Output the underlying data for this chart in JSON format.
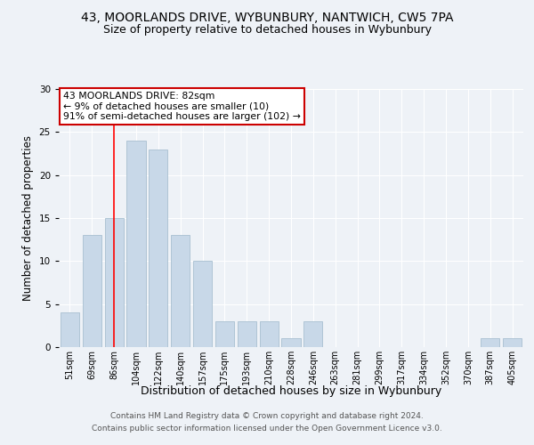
{
  "title": "43, MOORLANDS DRIVE, WYBUNBURY, NANTWICH, CW5 7PA",
  "subtitle": "Size of property relative to detached houses in Wybunbury",
  "xlabel": "Distribution of detached houses by size in Wybunbury",
  "ylabel": "Number of detached properties",
  "categories": [
    "51sqm",
    "69sqm",
    "86sqm",
    "104sqm",
    "122sqm",
    "140sqm",
    "157sqm",
    "175sqm",
    "193sqm",
    "210sqm",
    "228sqm",
    "246sqm",
    "263sqm",
    "281sqm",
    "299sqm",
    "317sqm",
    "334sqm",
    "352sqm",
    "370sqm",
    "387sqm",
    "405sqm"
  ],
  "values": [
    4,
    13,
    15,
    24,
    23,
    13,
    10,
    3,
    3,
    3,
    1,
    3,
    0,
    0,
    0,
    0,
    0,
    0,
    0,
    1,
    1
  ],
  "bar_color": "#c8d8e8",
  "bar_edgecolor": "#a8bfd0",
  "redline_index": 2,
  "annotation_title": "43 MOORLANDS DRIVE: 82sqm",
  "annotation_line2": "← 9% of detached houses are smaller (10)",
  "annotation_line3": "91% of semi-detached houses are larger (102) →",
  "ylim": [
    0,
    30
  ],
  "yticks": [
    0,
    5,
    10,
    15,
    20,
    25,
    30
  ],
  "footnote1": "Contains HM Land Registry data © Crown copyright and database right 2024.",
  "footnote2": "Contains public sector information licensed under the Open Government Licence v3.0.",
  "bg_color": "#eef2f7",
  "grid_color": "#ffffff",
  "annotation_box_color": "#ffffff",
  "annotation_box_edgecolor": "#cc0000",
  "title_fontsize": 10,
  "subtitle_fontsize": 9,
  "tick_fontsize": 7,
  "ylabel_fontsize": 8.5,
  "xlabel_fontsize": 9,
  "annotation_fontsize": 7.8,
  "footnote_fontsize": 6.5
}
